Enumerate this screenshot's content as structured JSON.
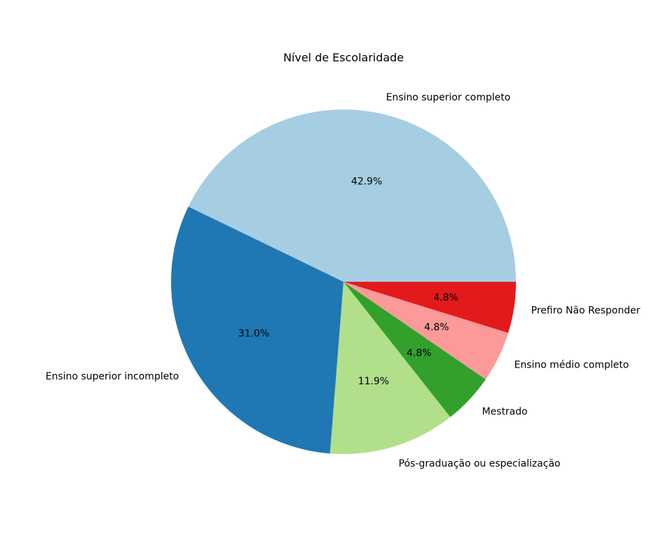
{
  "chart_data": {
    "type": "pie",
    "title": "Nível de Escolaridade",
    "start_angle_deg": 0,
    "direction": "counterclockwise",
    "slices": [
      {
        "label": "Ensino superior completo",
        "value": 42.9,
        "pct_label": "42.9%",
        "color": "#a6cee3"
      },
      {
        "label": "Ensino superior incompleto",
        "value": 31.0,
        "pct_label": "31.0%",
        "color": "#1f78b4"
      },
      {
        "label": "Pós-graduação ou especialização",
        "value": 11.9,
        "pct_label": "11.9%",
        "color": "#b2df8a"
      },
      {
        "label": "Mestrado",
        "value": 4.8,
        "pct_label": "4.8%",
        "color": "#33a02c"
      },
      {
        "label": "Ensino médio completo",
        "value": 4.8,
        "pct_label": "4.8%",
        "color": "#fb9a99"
      },
      {
        "label": "Prefiro Não Responder",
        "value": 4.8,
        "pct_label": "4.8%",
        "color": "#e31a1c"
      }
    ]
  }
}
